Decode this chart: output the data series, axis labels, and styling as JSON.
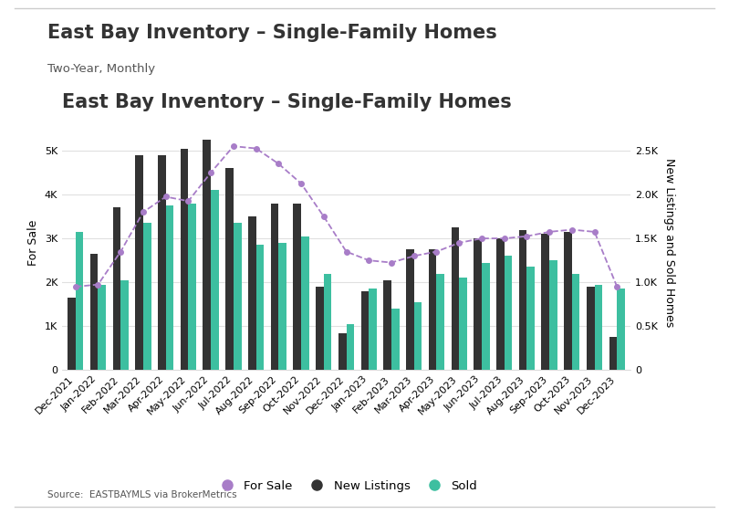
{
  "title": "East Bay Inventory – Single-Family Homes",
  "subtitle": "Two-Year, Monthly",
  "source": "Source:  EASTBAYMLS via BrokerMetrics",
  "ylabel_left": "For Sale",
  "ylabel_right": "New Listings and Sold Homes",
  "categories": [
    "Dec-2021",
    "Jan-2022",
    "Feb-2022",
    "Mar-2022",
    "Apr-2022",
    "May-2022",
    "Jun-2022",
    "Jul-2022",
    "Aug-2022",
    "Sep-2022",
    "Oct-2022",
    "Nov-2022",
    "Dec-2022",
    "Jan-2023",
    "Feb-2023",
    "Mar-2023",
    "Apr-2023",
    "May-2023",
    "Jun-2023",
    "Jul-2023",
    "Aug-2023",
    "Sep-2023",
    "Oct-2023",
    "Nov-2023",
    "Dec-2023"
  ],
  "new_listings": [
    1650,
    2650,
    3700,
    4900,
    4900,
    5050,
    5250,
    4600,
    3500,
    3800,
    3800,
    1900,
    850,
    1800,
    2050,
    2750,
    2750,
    3250,
    3000,
    3000,
    3200,
    3100,
    3150,
    1900,
    750
  ],
  "sold": [
    3150,
    1950,
    2050,
    3350,
    3750,
    3800,
    4100,
    3350,
    2850,
    2900,
    3050,
    2200,
    1050,
    1850,
    1400,
    1550,
    2200,
    2100,
    2450,
    2600,
    2350,
    2500,
    2200,
    1950,
    1850
  ],
  "for_sale": [
    1900,
    1950,
    2700,
    3600,
    3950,
    3850,
    4500,
    5100,
    5050,
    4700,
    4250,
    3500,
    2700,
    2500,
    2450,
    2600,
    2700,
    2900,
    3000,
    3000,
    3050,
    3150,
    3200,
    3150,
    1900
  ],
  "bar_color_new": "#333333",
  "bar_color_sold": "#3dbfa0",
  "line_color": "#a87dc8",
  "background_color": "#ffffff",
  "ylim_left": [
    0,
    5800
  ],
  "ylim_right": [
    0,
    2900
  ],
  "yticks_left": [
    0,
    1000,
    2000,
    3000,
    4000,
    5000
  ],
  "yticks_right": [
    0,
    500,
    1000,
    1500,
    2000,
    2500
  ],
  "ytick_labels_left": [
    "0",
    "1K",
    "2K",
    "3K",
    "4K",
    "5K"
  ],
  "ytick_labels_right": [
    "0",
    "0.5K",
    "1.0K",
    "1.5K",
    "2.0K",
    "2.5K"
  ],
  "grid_color": "#e0e0e0",
  "title_fontsize": 15,
  "subtitle_fontsize": 9.5,
  "tick_fontsize": 8,
  "label_fontsize": 9,
  "legend_fontsize": 9.5,
  "bar_width": 0.35
}
